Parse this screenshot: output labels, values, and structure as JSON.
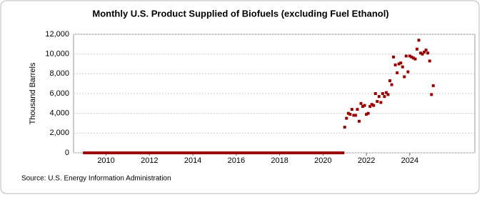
{
  "chart_data": {
    "type": "scatter",
    "title": "Monthly U.S. Product Supplied of Biofuels (excluding Fuel Ethanol)",
    "ylabel": "Thousand Barrels",
    "source": "Source: U.S. Energy Information Administration",
    "xlim": [
      2008.5,
      2027
    ],
    "ylim": [
      0,
      12000
    ],
    "xticks": [
      2010,
      2012,
      2014,
      2016,
      2018,
      2020,
      2022,
      2024
    ],
    "yticks": [
      0,
      {
        "value": 2000,
        "label": "2,000"
      },
      {
        "value": 4000,
        "label": "4,000"
      },
      {
        "value": 6000,
        "label": "6,000"
      },
      {
        "value": 8000,
        "label": "8,000"
      },
      {
        "value": 10000,
        "label": "10,000"
      },
      {
        "value": 12000,
        "label": "12,000"
      }
    ],
    "grid": true,
    "series": [
      {
        "color": "#990000",
        "x": [
          2009,
          2009.083,
          2009.167,
          2009.25,
          2009.333,
          2009.417,
          2009.5,
          2009.583,
          2009.667,
          2009.75,
          2009.833,
          2009.917,
          2010,
          2010.083,
          2010.167,
          2010.25,
          2010.333,
          2010.417,
          2010.5,
          2010.583,
          2010.667,
          2010.75,
          2010.833,
          2010.917,
          2011,
          2011.083,
          2011.167,
          2011.25,
          2011.333,
          2011.417,
          2011.5,
          2011.583,
          2011.667,
          2011.75,
          2011.833,
          2011.917,
          2012,
          2012.083,
          2012.167,
          2012.25,
          2012.333,
          2012.417,
          2012.5,
          2012.583,
          2012.667,
          2012.75,
          2012.833,
          2012.917,
          2013,
          2013.083,
          2013.167,
          2013.25,
          2013.333,
          2013.417,
          2013.5,
          2013.583,
          2013.667,
          2013.75,
          2013.833,
          2013.917,
          2014,
          2014.083,
          2014.167,
          2014.25,
          2014.333,
          2014.417,
          2014.5,
          2014.583,
          2014.667,
          2014.75,
          2014.833,
          2014.917,
          2015,
          2015.083,
          2015.167,
          2015.25,
          2015.333,
          2015.417,
          2015.5,
          2015.583,
          2015.667,
          2015.75,
          2015.833,
          2015.917,
          2016,
          2016.083,
          2016.167,
          2016.25,
          2016.333,
          2016.417,
          2016.5,
          2016.583,
          2016.667,
          2016.75,
          2016.833,
          2016.917,
          2017,
          2017.083,
          2017.167,
          2017.25,
          2017.333,
          2017.417,
          2017.5,
          2017.583,
          2017.667,
          2017.75,
          2017.833,
          2017.917,
          2018,
          2018.083,
          2018.167,
          2018.25,
          2018.333,
          2018.417,
          2018.5,
          2018.583,
          2018.667,
          2018.75,
          2018.833,
          2018.917,
          2019,
          2019.083,
          2019.167,
          2019.25,
          2019.333,
          2019.417,
          2019.5,
          2019.583,
          2019.667,
          2019.75,
          2019.833,
          2019.917,
          2020,
          2020.083,
          2020.167,
          2020.25,
          2020.333,
          2020.417,
          2020.5,
          2020.583,
          2020.667,
          2020.75,
          2020.833,
          2020.917,
          2021,
          2021.083,
          2021.167,
          2021.25,
          2021.333,
          2021.417,
          2021.5,
          2021.583,
          2021.667,
          2021.75,
          2021.833,
          2021.917,
          2022,
          2022.083,
          2022.167,
          2022.25,
          2022.333,
          2022.417,
          2022.5,
          2022.583,
          2022.667,
          2022.75,
          2022.833,
          2022.917,
          2023,
          2023.083,
          2023.167,
          2023.25,
          2023.333,
          2023.417,
          2023.5,
          2023.583,
          2023.667,
          2023.75,
          2023.833,
          2023.917,
          2024,
          2024.083,
          2024.167,
          2024.25,
          2024.333,
          2024.417,
          2024.5,
          2024.583,
          2024.667,
          2024.75,
          2024.833,
          2024.917,
          2025,
          2025.083
        ],
        "values": [
          0,
          0,
          0,
          0,
          0,
          0,
          0,
          0,
          0,
          0,
          0,
          0,
          0,
          0,
          0,
          0,
          0,
          0,
          0,
          0,
          0,
          0,
          0,
          0,
          0,
          0,
          0,
          0,
          0,
          0,
          0,
          0,
          0,
          0,
          0,
          0,
          0,
          0,
          0,
          0,
          0,
          0,
          0,
          0,
          0,
          0,
          0,
          0,
          0,
          0,
          0,
          0,
          0,
          0,
          0,
          0,
          0,
          0,
          0,
          0,
          0,
          0,
          0,
          0,
          0,
          0,
          0,
          0,
          0,
          0,
          0,
          0,
          0,
          0,
          0,
          0,
          0,
          0,
          0,
          0,
          0,
          0,
          0,
          0,
          0,
          0,
          0,
          0,
          0,
          0,
          0,
          0,
          0,
          0,
          0,
          0,
          0,
          0,
          0,
          0,
          0,
          0,
          0,
          0,
          0,
          0,
          0,
          0,
          0,
          0,
          0,
          0,
          0,
          0,
          0,
          0,
          0,
          0,
          0,
          0,
          0,
          0,
          0,
          0,
          0,
          0,
          0,
          0,
          0,
          0,
          0,
          0,
          0,
          0,
          0,
          0,
          0,
          0,
          0,
          0,
          0,
          0,
          0,
          0,
          2600,
          3500,
          4000,
          3900,
          4400,
          3800,
          3800,
          4400,
          3200,
          5000,
          4700,
          4800,
          3900,
          4000,
          4700,
          4900,
          4800,
          6000,
          5200,
          5700,
          5100,
          6000,
          5700,
          6100,
          5900,
          7300,
          6900,
          9700,
          8900,
          8100,
          9000,
          9100,
          8700,
          7700,
          9800,
          8200,
          9800,
          9700,
          9600,
          9500,
          10500,
          11400,
          10100,
          10000,
          10200,
          10400,
          10100,
          9300,
          5900,
          6800
        ]
      }
    ]
  }
}
